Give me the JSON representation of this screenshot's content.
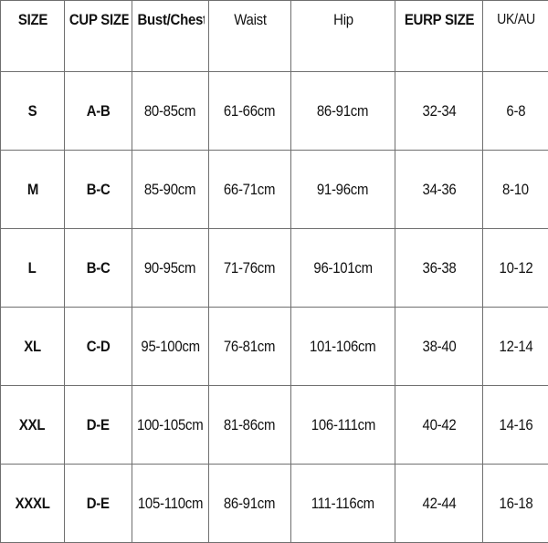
{
  "table": {
    "headers": [
      "SIZE",
      "CUP SIZE",
      "Bust/Chest",
      "Waist",
      "Hip",
      "EURP SIZE",
      "UK/AU"
    ],
    "rows": [
      [
        "S",
        "A-B",
        "80-85cm",
        "61-66cm",
        "86-91cm",
        "32-34",
        "6-8"
      ],
      [
        "M",
        "B-C",
        "85-90cm",
        "66-71cm",
        "91-96cm",
        "34-36",
        "8-10"
      ],
      [
        "L",
        "B-C",
        "90-95cm",
        "71-76cm",
        "96-101cm",
        "36-38",
        "10-12"
      ],
      [
        "XL",
        "C-D",
        "95-100cm",
        "76-81cm",
        "101-106cm",
        "38-40",
        "12-14"
      ],
      [
        "XXL",
        "D-E",
        "100-105cm",
        "81-86cm",
        "106-111cm",
        "40-42",
        "14-16"
      ],
      [
        "XXXL",
        "D-E",
        "105-110cm",
        "86-91cm",
        "111-116cm",
        "42-44",
        "16-18"
      ]
    ]
  },
  "colors": {
    "border": "#6f6f6f",
    "text": "#111111",
    "background": "#ffffff"
  }
}
